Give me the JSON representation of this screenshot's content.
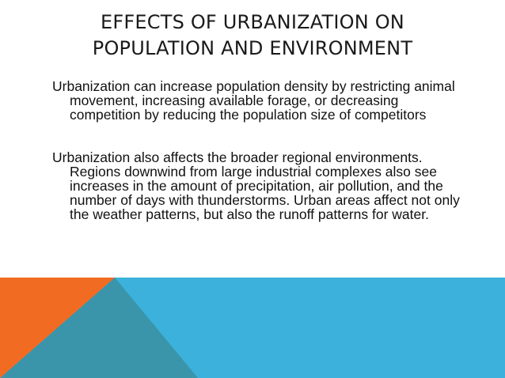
{
  "slide": {
    "title_line1": "EFFECTS OF URBANIZATION ON",
    "title_line2": "POPULATION AND ENVIRONMENT",
    "paragraphs": [
      "Urbanization can increase population density by restricting animal movement, increasing available forage, or decreasing competition by reducing the population size of competitors",
      "Urbanization also affects the broader regional environments. Regions downwind from large industrial complexes also see increases in the amount of precipitation, air pollution, and the number of days with thunderstorms. Urban areas affect not only the weather patterns, but also the runoff patterns for water."
    ]
  },
  "colors": {
    "band_blue": "#3bb1dc",
    "triangle_teal": "#3a95aa",
    "triangle_orange": "#f26b22"
  }
}
